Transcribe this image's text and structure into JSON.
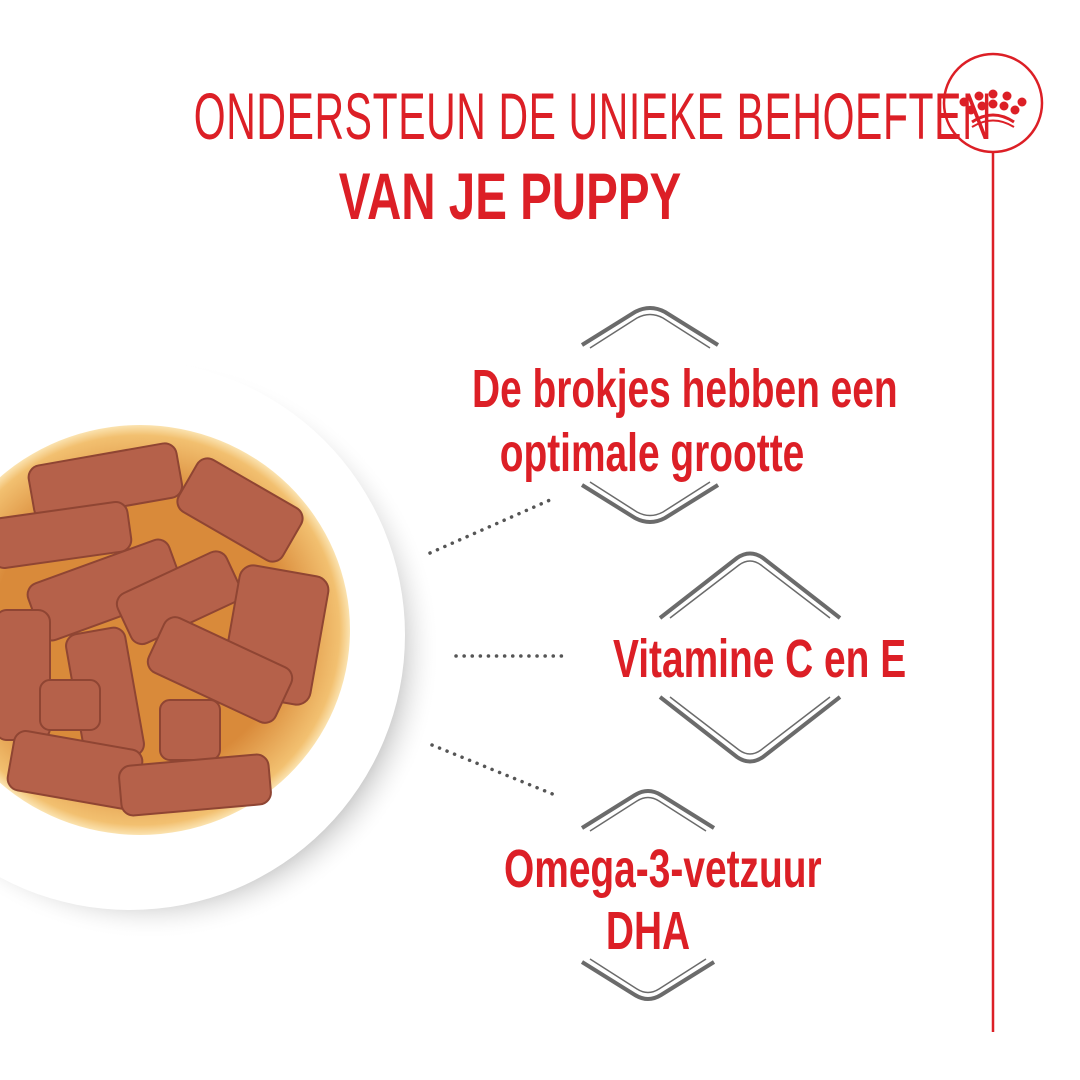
{
  "header": {
    "title_line1": "ONDERSTEUN DE UNIEKE BEHOEFTEN",
    "title_line2": "VAN JE PUPPY"
  },
  "logo": {
    "icon": "crown-icon"
  },
  "benefits": [
    {
      "line1": "De brokjes hebben een",
      "line2": "optimale grootte"
    },
    {
      "line1": "Vitamine C en E"
    },
    {
      "line1": "Omega-3-vetzuur",
      "line2": "DHA"
    }
  ],
  "colors": {
    "brand_red": "#dc1f26",
    "bracket_gray": "#6b6b6b",
    "dots": "#555555"
  }
}
